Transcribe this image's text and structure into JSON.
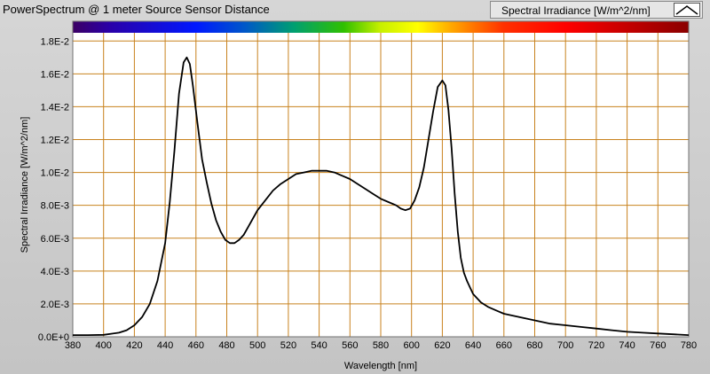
{
  "window": {
    "title": "PowerSpectrum @ 1 meter Source Sensor Distance"
  },
  "legend": {
    "label": "Spectral Irradiance [W/m^2/nm]",
    "swatch_icon": "line-peak-icon"
  },
  "chart_data": {
    "type": "line",
    "xlabel": "Wavelength [nm]",
    "ylabel": "Spectral Irradiance [W/m^2/nm]",
    "xlim": [
      380,
      780
    ],
    "ylim": [
      0,
      0.0185
    ],
    "x_ticks": [
      "380",
      "400",
      "420",
      "440",
      "460",
      "480",
      "500",
      "520",
      "540",
      "560",
      "580",
      "600",
      "620",
      "640",
      "660",
      "680",
      "700",
      "720",
      "740",
      "760",
      "780"
    ],
    "y_ticks": [
      {
        "value": 0,
        "label": "0.0E+0"
      },
      {
        "value": 0.002,
        "label": "2.0E-3"
      },
      {
        "value": 0.004,
        "label": "4.0E-3"
      },
      {
        "value": 0.006,
        "label": "6.0E-3"
      },
      {
        "value": 0.008,
        "label": "8.0E-3"
      },
      {
        "value": 0.01,
        "label": "1.0E-2"
      },
      {
        "value": 0.012,
        "label": "1.2E-2"
      },
      {
        "value": 0.014,
        "label": "1.4E-2"
      },
      {
        "value": 0.016,
        "label": "1.6E-2"
      },
      {
        "value": 0.018,
        "label": "1.8E-2"
      }
    ],
    "grid": true,
    "line_color": "#000000",
    "grid_color": "#c8821e",
    "plot_background": "#ffffff",
    "spectrum_band": true,
    "series": [
      {
        "x": [
          380,
          390,
          400,
          410,
          415,
          420,
          425,
          430,
          435,
          440,
          443,
          446,
          449,
          452,
          454,
          456,
          458,
          461,
          464,
          467,
          470,
          473,
          476,
          479,
          482,
          485,
          488,
          491,
          494,
          497,
          500,
          505,
          510,
          515,
          520,
          525,
          530,
          535,
          540,
          545,
          550,
          555,
          560,
          565,
          570,
          575,
          580,
          585,
          590,
          593,
          596,
          599,
          602,
          605,
          608,
          611,
          614,
          617,
          620,
          622,
          624,
          626,
          628,
          630,
          632,
          634,
          636,
          638,
          640,
          645,
          650,
          655,
          660,
          670,
          680,
          690,
          700,
          710,
          720,
          730,
          740,
          750,
          760,
          770,
          780
        ],
        "y": [
          0.0001,
          0.0001,
          0.00012,
          0.00025,
          0.0004,
          0.0007,
          0.0012,
          0.002,
          0.0034,
          0.0057,
          0.0082,
          0.0113,
          0.0148,
          0.0167,
          0.017,
          0.0166,
          0.0153,
          0.013,
          0.0108,
          0.0094,
          0.0081,
          0.0071,
          0.0064,
          0.0059,
          0.0057,
          0.0057,
          0.0059,
          0.0062,
          0.0067,
          0.0072,
          0.0077,
          0.0083,
          0.0089,
          0.0093,
          0.0096,
          0.0099,
          0.01,
          0.0101,
          0.0101,
          0.0101,
          0.01,
          0.0098,
          0.0096,
          0.0093,
          0.009,
          0.0087,
          0.0084,
          0.0082,
          0.008,
          0.0078,
          0.0077,
          0.0078,
          0.0083,
          0.0091,
          0.0103,
          0.012,
          0.0137,
          0.0152,
          0.0156,
          0.0153,
          0.0138,
          0.0115,
          0.0087,
          0.0064,
          0.0048,
          0.0039,
          0.0034,
          0.003,
          0.0026,
          0.0021,
          0.0018,
          0.0016,
          0.0014,
          0.0012,
          0.001,
          0.0008,
          0.0007,
          0.0006,
          0.0005,
          0.0004,
          0.0003,
          0.00025,
          0.0002,
          0.00015,
          0.0001
        ]
      }
    ]
  }
}
